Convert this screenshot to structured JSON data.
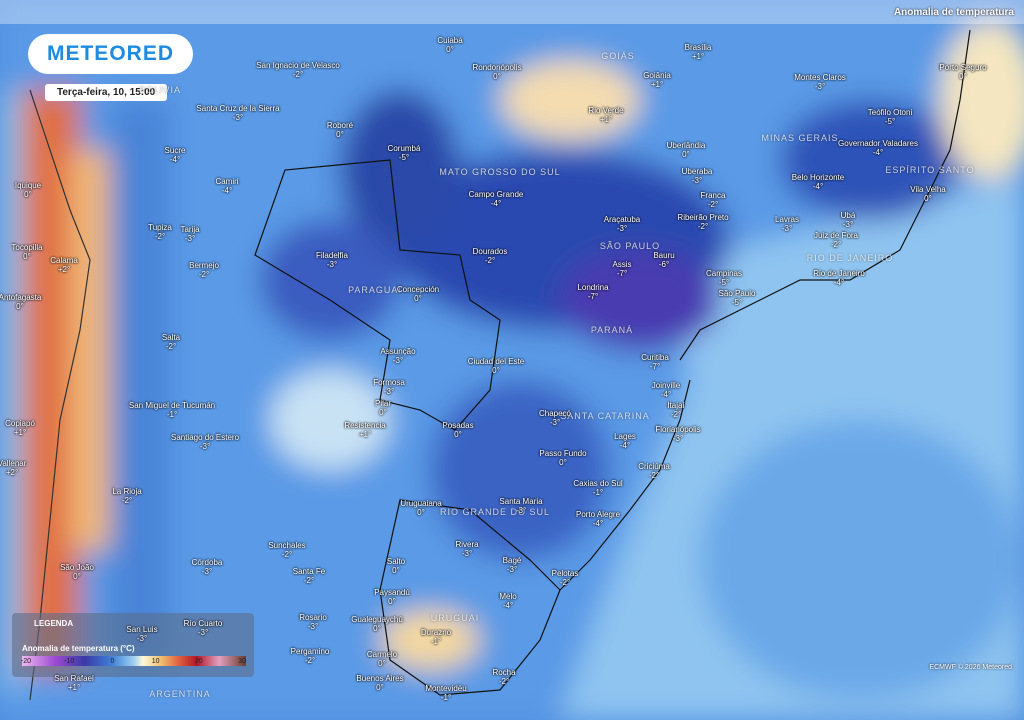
{
  "logo": "METEORED",
  "timestamp": "Terça-feira, 10, 15:00",
  "header": {
    "layer_title": "Anomalia de temperatura"
  },
  "legend": {
    "title": "LEGENDA",
    "heading": "Anomalia de temperatura (°C)",
    "ticks": [
      -20,
      -10,
      0,
      10,
      20,
      30
    ]
  },
  "credit": "ECMWF © 2026 Meteored",
  "regions": [
    "MATO GROSSO DO SUL",
    "SÃO PAULO",
    "PARANÁ",
    "SANTA CATARINA",
    "RIO GRANDE DO SUL",
    "MINAS GERAIS",
    "ESPÍRITO SANTO",
    "RIO DE JANEIRO",
    "PARAGUAI",
    "URUGUAI",
    "ARGENTINA",
    "GOIÁS",
    "BOLIVIA"
  ],
  "cities": [
    {
      "name": "Cuiabá",
      "value": "0°"
    },
    {
      "name": "Rondonópolis",
      "value": "0°"
    },
    {
      "name": "Brasília",
      "value": "+1°"
    },
    {
      "name": "Goiânia",
      "value": "+1°"
    },
    {
      "name": "Porto Seguro",
      "value": "0°"
    },
    {
      "name": "Montes Claros",
      "value": "-3°"
    },
    {
      "name": "Rio Verde",
      "value": "+1°"
    },
    {
      "name": "Teófilo Otoni",
      "value": "-5°"
    },
    {
      "name": "Uberlândia",
      "value": "0°"
    },
    {
      "name": "Governador Valadares",
      "value": "-4°"
    },
    {
      "name": "San Ignacio de Velasco",
      "value": "-2°"
    },
    {
      "name": "Santa Cruz de la Sierra",
      "value": "-3°"
    },
    {
      "name": "Roboré",
      "value": "0°"
    },
    {
      "name": "Corumbá",
      "value": "-5°"
    },
    {
      "name": "Sucre",
      "value": "-4°"
    },
    {
      "name": "Camiri",
      "value": "-4°"
    },
    {
      "name": "Uberaba",
      "value": "-3°"
    },
    {
      "name": "Belo Horizonte",
      "value": "-4°"
    },
    {
      "name": "Vila Velha",
      "value": "0°"
    },
    {
      "name": "Campo Grande",
      "value": "-4°"
    },
    {
      "name": "Franca",
      "value": "-2°"
    },
    {
      "name": "Araçatuba",
      "value": "-3°"
    },
    {
      "name": "Ribeirão Preto",
      "value": "-2°"
    },
    {
      "name": "Lavras",
      "value": "-3°"
    },
    {
      "name": "Ubá",
      "value": "-3°"
    },
    {
      "name": "Juiz de Fora",
      "value": "-2°"
    },
    {
      "name": "Tupiza",
      "value": "-2°"
    },
    {
      "name": "Tarija",
      "value": "-3°"
    },
    {
      "name": "Iquique",
      "value": "0°"
    },
    {
      "name": "Tocopilla",
      "value": "0°"
    },
    {
      "name": "Calama",
      "value": "+2°"
    },
    {
      "name": "Filadelfia",
      "value": "-3°"
    },
    {
      "name": "Dourados",
      "value": "-2°"
    },
    {
      "name": "Assis",
      "value": "-7°"
    },
    {
      "name": "Bauru",
      "value": "-6°"
    },
    {
      "name": "Campinas",
      "value": "-5°"
    },
    {
      "name": "Rio de Janeiro",
      "value": "-4°"
    },
    {
      "name": "Bermejo",
      "value": "-2°"
    },
    {
      "name": "Concepción",
      "value": "0°"
    },
    {
      "name": "Londrina",
      "value": "-7°"
    },
    {
      "name": "São Paulo",
      "value": "-5°"
    },
    {
      "name": "Antofagasta",
      "value": "0°"
    },
    {
      "name": "Salta",
      "value": "-2°"
    },
    {
      "name": "Assunção",
      "value": "-3°"
    },
    {
      "name": "Ciudad del Este",
      "value": "0°"
    },
    {
      "name": "Curitiba",
      "value": "-7°"
    },
    {
      "name": "Formosa",
      "value": "-3°"
    },
    {
      "name": "Joinville",
      "value": "-4°"
    },
    {
      "name": "San Miguel de Tucumán",
      "value": "-1°"
    },
    {
      "name": "Pilar",
      "value": "0°"
    },
    {
      "name": "Itajaí",
      "value": "-2°"
    },
    {
      "name": "Chapecó",
      "value": "-3°"
    },
    {
      "name": "Copiapó",
      "value": "+1°"
    },
    {
      "name": "Resistencia",
      "value": "+1°"
    },
    {
      "name": "Posadas",
      "value": "0°"
    },
    {
      "name": "Lages",
      "value": "-4°"
    },
    {
      "name": "Florianópolis",
      "value": "-3°"
    },
    {
      "name": "Santiago do Estero",
      "value": "-3°"
    },
    {
      "name": "Passo Fundo",
      "value": "0°"
    },
    {
      "name": "Vallenar",
      "value": "+2°"
    },
    {
      "name": "Criciúma",
      "value": "-2°"
    },
    {
      "name": "Caxias do Sul",
      "value": "-1°"
    },
    {
      "name": "La Rioja",
      "value": "-2°"
    },
    {
      "name": "Uruguaiana",
      "value": "0°"
    },
    {
      "name": "Santa Maria",
      "value": "-3°"
    },
    {
      "name": "Porto Alegre",
      "value": "-4°"
    },
    {
      "name": "Rivera",
      "value": "-3°"
    },
    {
      "name": "Bagé",
      "value": "-3°"
    },
    {
      "name": "Sunchales",
      "value": "-2°"
    },
    {
      "name": "São João",
      "value": "0°"
    },
    {
      "name": "Córdoba",
      "value": "-3°"
    },
    {
      "name": "Santa Fe",
      "value": "-2°"
    },
    {
      "name": "Salto",
      "value": "0°"
    },
    {
      "name": "Pelotas",
      "value": "-2°"
    },
    {
      "name": "Paysandú",
      "value": "0°"
    },
    {
      "name": "Melo",
      "value": "-4°"
    },
    {
      "name": "Rosario",
      "value": "-3°"
    },
    {
      "name": "Gualeguaychú",
      "value": "0°"
    },
    {
      "name": "Río Cuarto",
      "value": "-3°"
    },
    {
      "name": "San Luis",
      "value": "-3°"
    },
    {
      "name": "Durazno",
      "value": "-1°"
    },
    {
      "name": "Pergamino",
      "value": "-2°"
    },
    {
      "name": "Carmelo",
      "value": "0°"
    },
    {
      "name": "Rocha",
      "value": "-2°"
    },
    {
      "name": "Buenos Aires",
      "value": "0°"
    },
    {
      "name": "Montevidéu",
      "value": "-1°"
    },
    {
      "name": "San Rafael",
      "value": "+1°"
    }
  ]
}
